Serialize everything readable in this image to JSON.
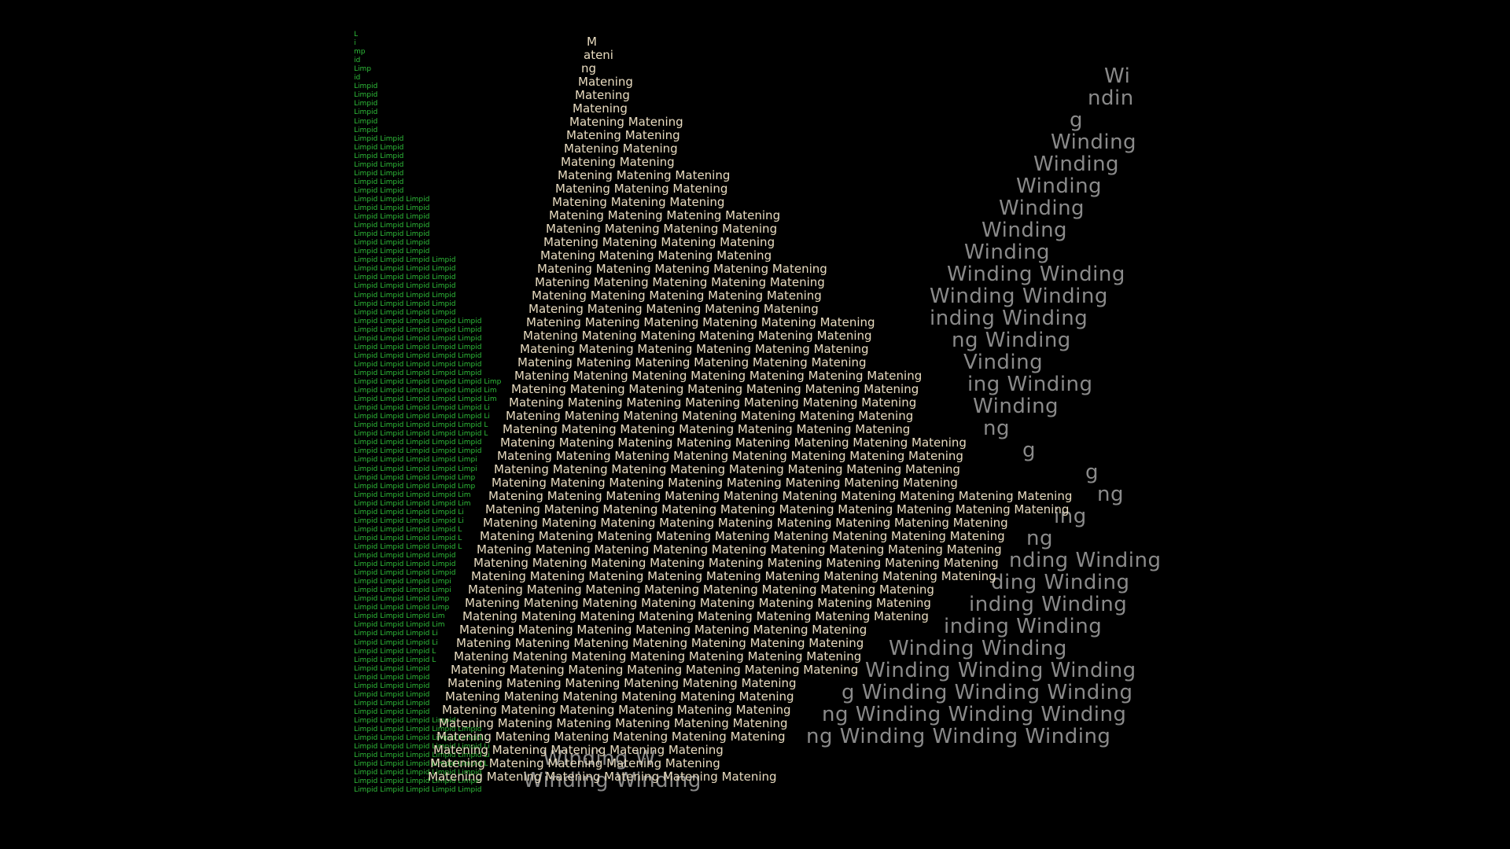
{
  "colors": {
    "background": "#000000",
    "limpid": "#2fbf3a",
    "winding": "#8a8a8a",
    "matening": "#e9dcc0"
  },
  "words": {
    "limpid": "Limpid",
    "winding": "Winding",
    "matening": "Matening"
  },
  "limpid_lines": [
    "L",
    "i",
    "mp",
    "id",
    "Limp",
    "id",
    "Limpid",
    "Limpid",
    "Limpid",
    "Limpid",
    "Limpid",
    "Limpid",
    "Limpid Limpid",
    "Limpid Limpid",
    "Limpid Limpid",
    "Limpid Limpid",
    "Limpid Limpid",
    "Limpid Limpid",
    "Limpid Limpid",
    "Limpid Limpid Limpid",
    "Limpid Limpid Limpid",
    "Limpid Limpid Limpid",
    "Limpid Limpid Limpid",
    "Limpid Limpid Limpid",
    "Limpid Limpid Limpid",
    "Limpid Limpid Limpid",
    "Limpid Limpid Limpid Limpid",
    "Limpid Limpid Limpid Limpid",
    "Limpid Limpid Limpid Limpid",
    "Limpid Limpid Limpid Limpid",
    "Limpid Limpid Limpid Limpid",
    "Limpid Limpid Limpid Limpid",
    "Limpid Limpid Limpid Limpid",
    "Limpid Limpid Limpid Limpid Limpid",
    "Limpid Limpid Limpid Limpid Limpid",
    "Limpid Limpid Limpid Limpid Limpid",
    "Limpid Limpid Limpid Limpid Limpid",
    "Limpid Limpid Limpid Limpid Limpid",
    "Limpid Limpid Limpid Limpid Limpid",
    "Limpid Limpid Limpid Limpid Limpid",
    "Limpid Limpid Limpid Limpid Limpid Limp",
    "Limpid Limpid Limpid Limpid Limpid Lim",
    "Limpid Limpid Limpid Limpid Limpid Lim",
    "Limpid Limpid Limpid Limpid Limpid Li",
    "Limpid Limpid Limpid Limpid Limpid Li",
    "Limpid Limpid Limpid Limpid Limpid L",
    "Limpid Limpid Limpid Limpid Limpid L",
    "Limpid Limpid Limpid Limpid Limpid",
    "Limpid Limpid Limpid Limpid Limpid",
    "Limpid Limpid Limpid Limpid Limpi",
    "Limpid Limpid Limpid Limpid Limpi",
    "Limpid Limpid Limpid Limpid Limp",
    "Limpid Limpid Limpid Limpid Limp",
    "Limpid Limpid Limpid Limpid Lim",
    "Limpid Limpid Limpid Limpid Lim",
    "Limpid Limpid Limpid Limpid Li",
    "Limpid Limpid Limpid Limpid Li",
    "Limpid Limpid Limpid Limpid L",
    "Limpid Limpid Limpid Limpid L",
    "Limpid Limpid Limpid Limpid L",
    "Limpid Limpid Limpid Limpid",
    "Limpid Limpid Limpid Limpid",
    "Limpid Limpid Limpid Limpid",
    "Limpid Limpid Limpid Limpi",
    "Limpid Limpid Limpid Limpi",
    "Limpid Limpid Limpid Limp",
    "Limpid Limpid Limpid Limp",
    "Limpid Limpid Limpid Lim",
    "Limpid Limpid Limpid Lim",
    "Limpid Limpid Limpid Li",
    "Limpid Limpid Limpid Li",
    "Limpid Limpid Limpid L",
    "Limpid Limpid Limpid L",
    "Limpid Limpid Limpid",
    "Limpid Limpid Limpid",
    "Limpid Limpid Limpid",
    "Limpid Limpid Limpid",
    "Limpid Limpid Limpid",
    "Limpid Limpid Limpid",
    "Limpid Limpid Limpid Limpid",
    "Limpid Limpid Limpid Limpid Limpid",
    "Limpid Limpid Limpid Limpid Limpid L",
    "Limpid Limpid Limpid Limpid Limpid Li",
    "Limpid Limpid Limpid Limpid Limpid Li",
    "Limpid Limpid Limpid Limpid Limpid L",
    "Limpid Limpid Limpid Limpid Limpid",
    "Limpid Limpid Limpid Limpid Limpid",
    "Limpid Limpid Limpid Limpid Limpid"
  ],
  "winding_lines": [
    "Wi",
    "ndin",
    "g",
    "Winding",
    "Winding",
    "Winding",
    "Winding",
    "Winding",
    "Winding",
    "Winding Winding",
    "Winding Winding",
    "inding Winding",
    "ng Winding",
    "Vinding",
    "ing Winding",
    "Winding",
    "ng",
    "g",
    "g",
    "ng",
    "ing",
    "ng",
    "nding Winding",
    "ding Winding",
    "inding Winding",
    "inding Winding",
    "Winding Winding",
    "Winding Winding Winding",
    "g Winding Winding Winding",
    "ng Winding Winding Winding",
    "ng Winding Winding Winding",
    "Winding W",
    "Winding Winding"
  ],
  "matening_lines": [
    "M",
    "ateni",
    "ng",
    "Matening",
    "Matening",
    "Matening",
    "Matening Matening",
    "Matening Matening",
    "Matening Matening",
    "Matening Matening",
    "Matening Matening Matening",
    "Matening Matening Matening",
    "Matening Matening Matening",
    "Matening Matening Matening Matening",
    "Matening Matening Matening Matening",
    "Matening Matening Matening Matening",
    "Matening Matening Matening Matening",
    "Matening Matening Matening Matening Matening",
    "Matening Matening Matening Matening Matening",
    "Matening Matening Matening Matening Matening",
    "Matening Matening Matening Matening Matening",
    "Matening Matening Matening Matening Matening Matening",
    "Matening Matening Matening Matening Matening Matening",
    "Matening Matening Matening Matening Matening Matening",
    "Matening Matening Matening Matening Matening Matening",
    "Matening Matening Matening Matening Matening Matening Matening",
    "Matening Matening Matening Matening Matening Matening Matening",
    "Matening Matening Matening Matening Matening Matening Matening",
    "Matening Matening Matening Matening Matening Matening Matening",
    "Matening Matening Matening Matening Matening Matening Matening",
    "Matening Matening Matening Matening Matening Matening Matening Matening",
    "Matening Matening Matening Matening Matening Matening Matening Matening",
    "Matening Matening Matening Matening Matening Matening Matening Matening",
    "Matening Matening Matening Matening Matening Matening Matening Matening",
    "Matening Matening Matening Matening Matening Matening Matening Matening Matening Matening",
    "Matening Matening Matening Matening Matening Matening Matening Matening Matening Matening",
    "Matening Matening Matening Matening Matening Matening Matening Matening Matening",
    "Matening Matening Matening Matening Matening Matening Matening Matening Matening",
    "Matening Matening Matening Matening Matening Matening Matening Matening Matening",
    "Matening Matening Matening Matening Matening Matening Matening Matening Matening",
    "Matening Matening Matening Matening Matening Matening Matening Matening Matening",
    "Matening Matening Matening Matening Matening Matening Matening Matening",
    "Matening Matening Matening Matening Matening Matening Matening Matening",
    "Matening Matening Matening Matening Matening Matening Matening Matening",
    "Matening Matening Matening Matening Matening Matening Matening",
    "Matening Matening Matening Matening Matening Matening Matening",
    "Matening Matening Matening Matening Matening Matening Matening",
    "Matening Matening Matening Matening Matening Matening Matening",
    "Matening Matening Matening Matening Matening Matening",
    "Matening Matening Matening Matening Matening Matening",
    "Matening Matening Matening Matening Matening Matening",
    "Matening Matening Matening Matening Matening Matening",
    "Matening Matening Matening Matening Matening Matening",
    "Matening Matening Matening Matening Matening",
    "Matening Matening Matening Matening Matening",
    "Matening Matening Matening Matening Matening Matening"
  ]
}
